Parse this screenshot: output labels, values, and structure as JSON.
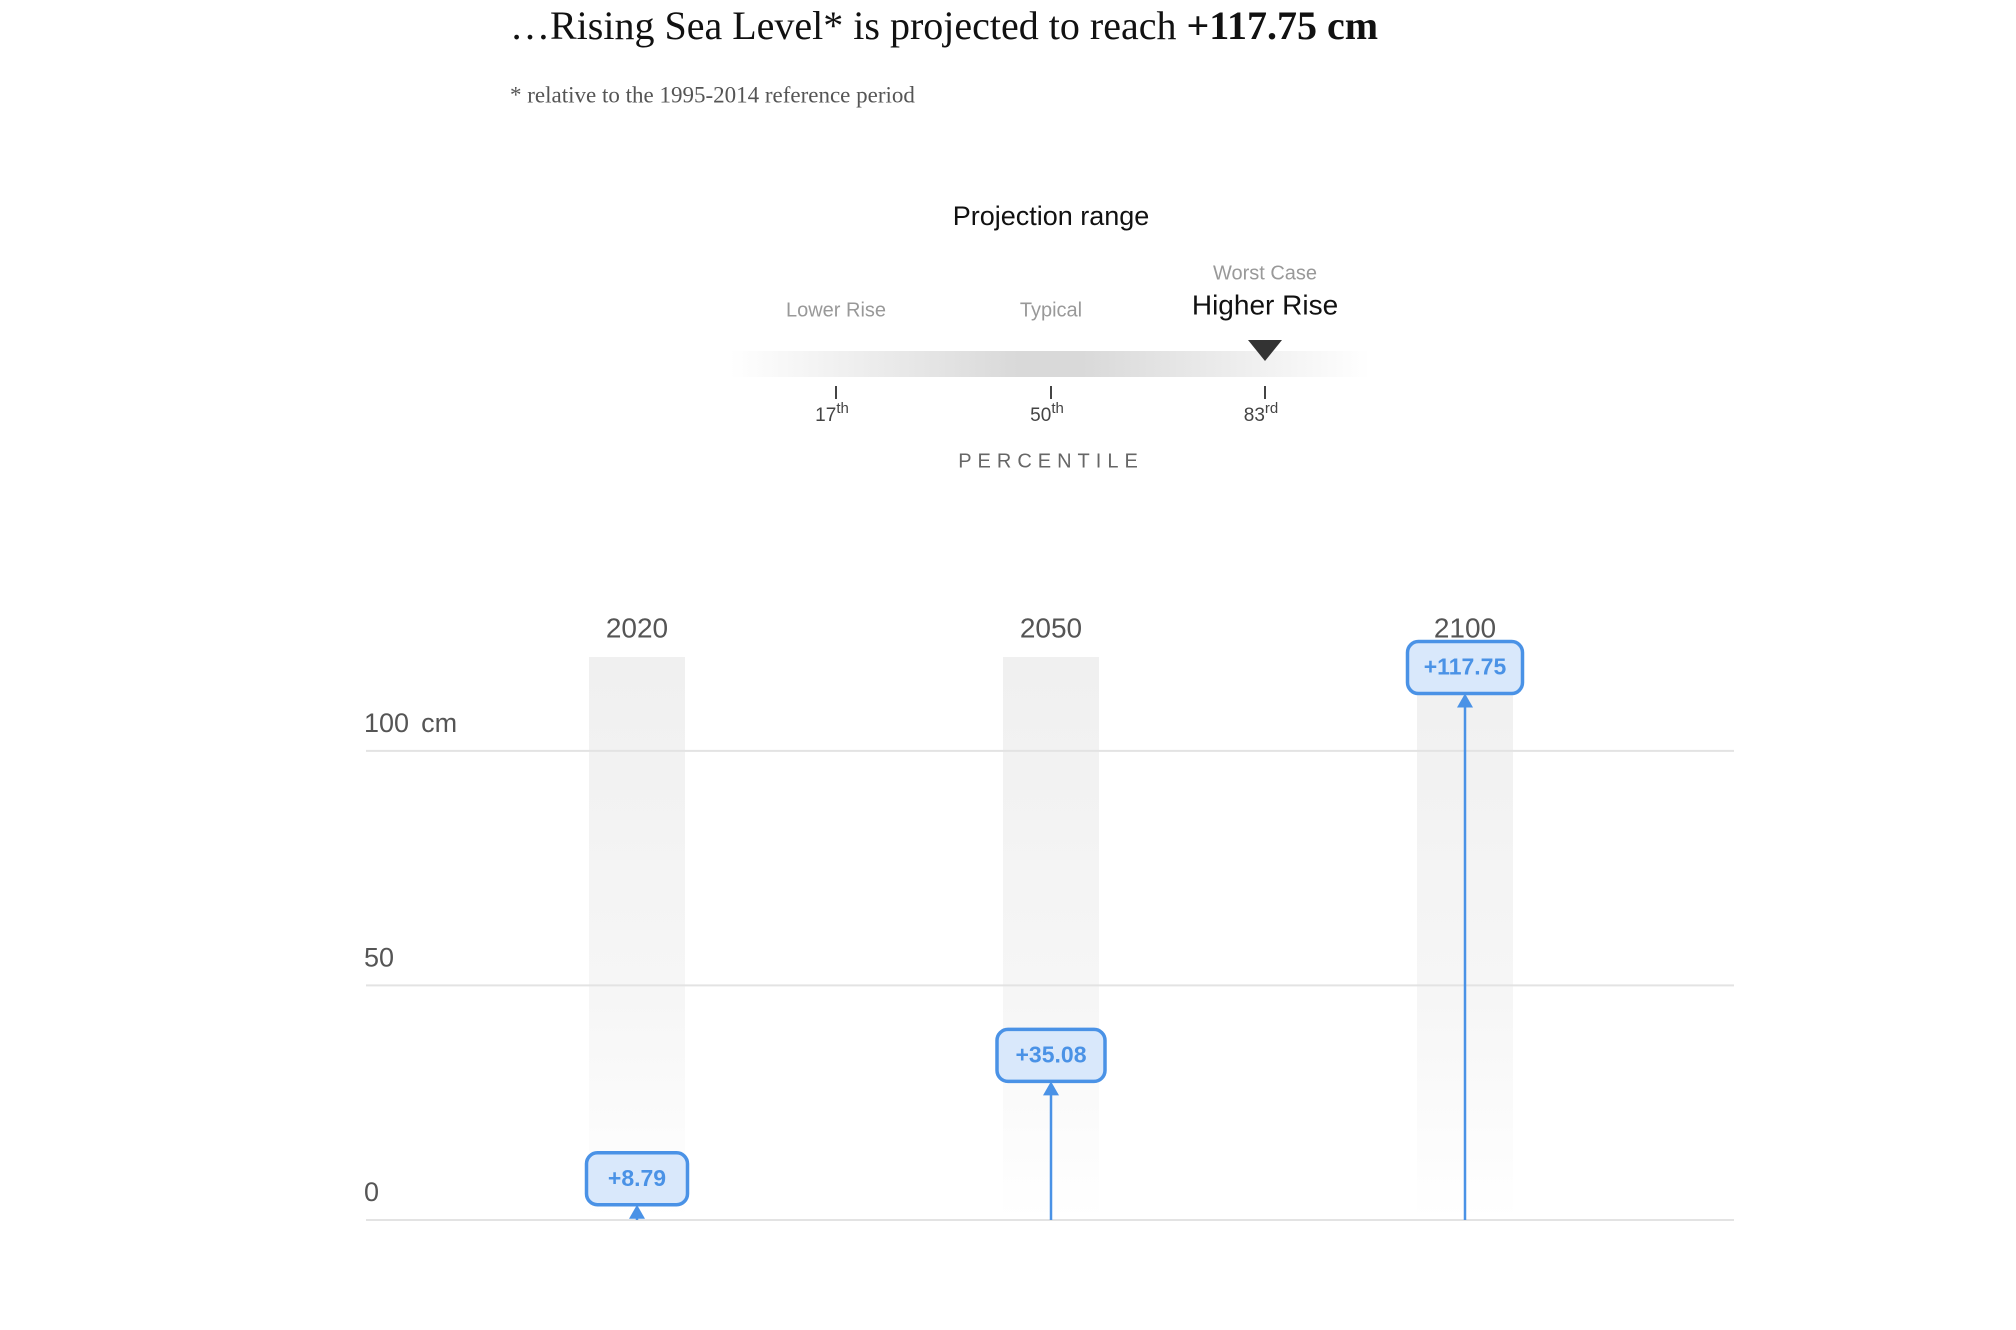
{
  "header": {
    "title": "…Rising Sea Level* is projected to reach",
    "highlight": "+117.75 cm",
    "footnote": "* relative to the 1995-2014 reference period"
  },
  "projection_range": {
    "title": "Projection range",
    "options": [
      {
        "label": "Lower Rise",
        "number": "17",
        "suffix": "th"
      },
      {
        "label": "Typical",
        "number": "50",
        "suffix": "th"
      },
      {
        "label": "Higher Rise",
        "note": "Worst Case",
        "number": "83",
        "suffix": "rd"
      }
    ],
    "selected": 2,
    "axis_label": "PERCENTILE"
  },
  "chart_data": {
    "type": "lollipop",
    "categories": [
      "2020",
      "2050",
      "2100"
    ],
    "values": [
      8.79,
      35.08,
      117.75
    ],
    "value_labels": [
      "+8.79",
      "+35.08",
      "+117.75"
    ],
    "color": "#4a92e6",
    "ylim": [
      0,
      120
    ],
    "yticks": [
      0,
      50,
      100
    ],
    "y_unit": "cm",
    "grid": true
  }
}
